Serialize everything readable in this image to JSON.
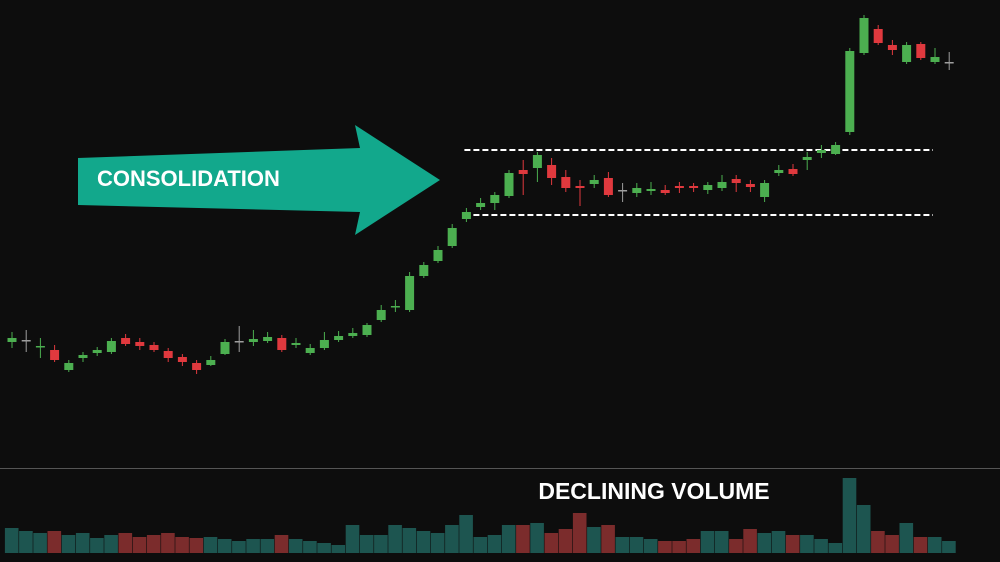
{
  "chart_data": {
    "type": "candlestick",
    "annotations": [
      "CONSOLIDATION",
      "DECLINING VOLUME"
    ],
    "open": [
      118,
      120,
      113,
      110,
      90,
      102,
      107,
      108,
      122,
      118,
      115,
      109,
      103,
      97,
      95,
      106,
      119,
      118,
      119,
      122,
      115,
      107,
      112,
      120,
      124,
      125,
      140,
      153,
      150,
      184,
      199,
      214,
      241,
      253,
      257,
      264,
      290,
      292,
      295,
      283,
      274,
      276,
      282,
      270,
      267,
      269,
      270,
      274,
      274,
      270,
      272,
      281,
      276,
      263,
      287,
      291,
      300,
      307,
      306,
      328,
      407,
      431,
      415,
      398,
      416,
      398,
      398
    ],
    "high": [
      128,
      130,
      122,
      115,
      100,
      108,
      113,
      122,
      126,
      122,
      118,
      112,
      106,
      100,
      104,
      121,
      134,
      130,
      128,
      125,
      122,
      116,
      128,
      129,
      132,
      137,
      155,
      160,
      188,
      198,
      214,
      236,
      252,
      262,
      268,
      290,
      300,
      308,
      302,
      290,
      280,
      285,
      288,
      277,
      277,
      278,
      275,
      278,
      277,
      278,
      285,
      285,
      280,
      280,
      295,
      296,
      308,
      315,
      318,
      412,
      445,
      435,
      420,
      418,
      418,
      412,
      408
    ],
    "low": [
      112,
      108,
      102,
      98,
      88,
      98,
      104,
      106,
      114,
      110,
      108,
      98,
      94,
      86,
      94,
      105,
      108,
      114,
      117,
      108,
      112,
      105,
      110,
      118,
      122,
      123,
      138,
      148,
      148,
      182,
      197,
      212,
      238,
      250,
      250,
      262,
      265,
      278,
      275,
      268,
      254,
      272,
      263,
      258,
      263,
      265,
      265,
      267,
      268,
      266,
      269,
      268,
      268,
      258,
      284,
      284,
      290,
      302,
      305,
      325,
      405,
      415,
      405,
      396,
      400,
      396,
      390
    ],
    "close": [
      122,
      120,
      114,
      100,
      97,
      105,
      110,
      119,
      116,
      114,
      110,
      102,
      98,
      90,
      100,
      118,
      119,
      121,
      123,
      110,
      117,
      112,
      120,
      124,
      127,
      135,
      150,
      154,
      184,
      195,
      210,
      232,
      248,
      257,
      265,
      287,
      286,
      305,
      282,
      272,
      272,
      280,
      265,
      270,
      272,
      271,
      267,
      272,
      272,
      275,
      278,
      277,
      273,
      277,
      290,
      286,
      303,
      310,
      315,
      409,
      442,
      417,
      410,
      415,
      402,
      403,
      398
    ],
    "volume": [
      25,
      22,
      20,
      22,
      18,
      20,
      15,
      18,
      20,
      16,
      18,
      20,
      16,
      15,
      16,
      14,
      12,
      14,
      14,
      18,
      14,
      12,
      10,
      8,
      28,
      18,
      18,
      28,
      25,
      22,
      20,
      28,
      38,
      16,
      18,
      28,
      28,
      30,
      20,
      24,
      40,
      26,
      28,
      16,
      16,
      14,
      12,
      12,
      14,
      22,
      22,
      14,
      24,
      20,
      22,
      18,
      18,
      14,
      10,
      75,
      48,
      22,
      18,
      30,
      16,
      16,
      12
    ],
    "ylim": [
      0,
      460
    ],
    "volume_ylim": [
      0,
      90
    ],
    "levels": [
      310,
      245
    ],
    "up_color": "#4caf50",
    "down_color": "#e0393e",
    "doji_color": "#9e9e9e",
    "volume_up_color": "#1d5550",
    "volume_down_color": "#7b2c2c",
    "annotation_color": "#12a88c"
  }
}
